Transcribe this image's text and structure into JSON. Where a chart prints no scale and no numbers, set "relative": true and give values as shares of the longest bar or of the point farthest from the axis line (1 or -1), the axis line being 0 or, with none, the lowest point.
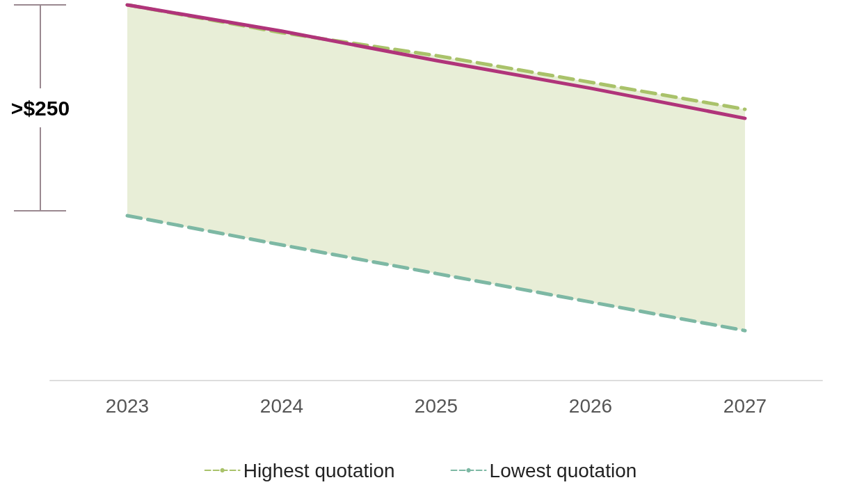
{
  "chart_data": {
    "type": "line",
    "relative": true,
    "categories": [
      "2023",
      "2024",
      "2025",
      "2026",
      "2027"
    ],
    "series": [
      {
        "color": "#b0347a",
        "line_style": "solid",
        "values": [
          1,
          0.93,
          0.852,
          0.778,
          0.698
        ],
        "lower": [
          0.439,
          0.361,
          0.285,
          0.209,
          0.133
        ],
        "upper": [
          1,
          0.926,
          0.865,
          0.794,
          0.722
        ]
      },
      {
        "name": "Highest quotation",
        "color": "#a9c26a",
        "line_style": "dashed",
        "values": [
          1,
          0.926,
          0.865,
          0.794,
          0.722
        ]
      },
      {
        "name": "Lowest quotation",
        "color": "#7db8a4",
        "line_style": "dashed",
        "values": [
          0.439,
          0.361,
          0.285,
          0.209,
          0.133
        ]
      }
    ],
    "annotations": [
      ">$250"
    ],
    "legend": "bottom",
    "marker": "none",
    "grid": false
  }
}
